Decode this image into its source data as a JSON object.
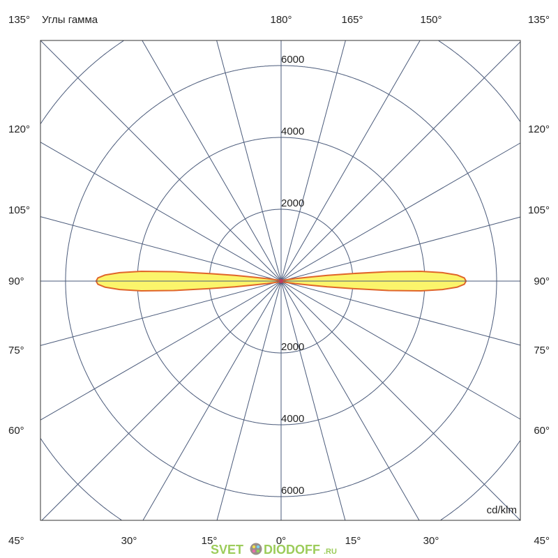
{
  "chart_data": {
    "type": "polar",
    "title": "Углы гамма",
    "unit": "cd/klm",
    "radial_ticks": [
      2000,
      4000,
      6000
    ],
    "radial_max": 8000,
    "angle_step_deg": 15,
    "grid": true,
    "top_labels": [
      "135°",
      "180°",
      "165°",
      "150°",
      "135°"
    ],
    "side_labels": [
      "120°",
      "105°",
      "90°",
      "75°",
      "60°"
    ],
    "bottom_labels": [
      "45°",
      "30°",
      "15°",
      "0°",
      "15°",
      "30°",
      "45°"
    ],
    "ring_labels_top": [
      "6000",
      "4000",
      "2000"
    ],
    "ring_labels_bottom": [
      "2000",
      "4000",
      "6000"
    ],
    "series": [
      {
        "gamma_deg": [
          60,
          70,
          75,
          78,
          80,
          82,
          83,
          84,
          85,
          86,
          87,
          88,
          89,
          90,
          91,
          92,
          93,
          94,
          95,
          96,
          97,
          98,
          100,
          102,
          105,
          110,
          120
        ],
        "intensity": [
          20,
          60,
          120,
          220,
          400,
          800,
          1300,
          2000,
          3000,
          3900,
          4500,
          4900,
          5100,
          5150,
          5100,
          4900,
          4500,
          3900,
          3000,
          2000,
          1300,
          800,
          400,
          220,
          120,
          60,
          20
        ],
        "fill": "#fbf56b",
        "stroke": "#e0652a"
      }
    ],
    "grid_color": "#4a5a7a"
  },
  "watermark": {
    "text": "SVET",
    "text2": "DIODOFF",
    "suffix": ".RU"
  }
}
